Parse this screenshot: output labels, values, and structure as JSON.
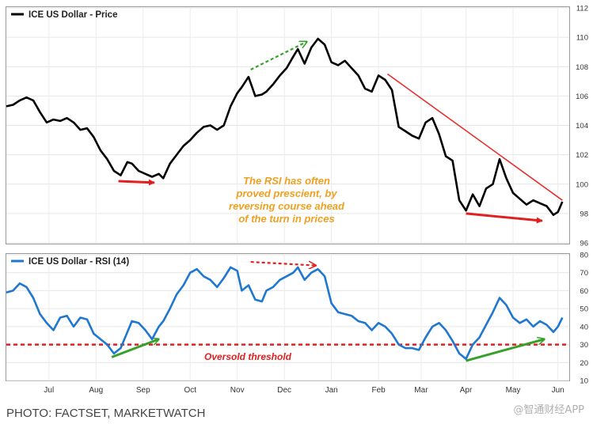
{
  "chart_data": [
    {
      "type": "line",
      "series": [
        {
          "name": "ICE US Dollar - Price",
          "color": "#000000",
          "points": [
            [
              0,
              105.3
            ],
            [
              0.3,
              105.4
            ],
            [
              0.6,
              105.7
            ],
            [
              0.9,
              105.9
            ],
            [
              1.2,
              105.7
            ],
            [
              1.5,
              104.9
            ],
            [
              1.8,
              104.2
            ],
            [
              2.1,
              104.4
            ],
            [
              2.4,
              104.3
            ],
            [
              2.7,
              104.5
            ],
            [
              3.0,
              104.2
            ],
            [
              3.3,
              103.7
            ],
            [
              3.6,
              103.8
            ],
            [
              3.9,
              103.2
            ],
            [
              4.2,
              102.3
            ],
            [
              4.5,
              101.7
            ],
            [
              4.8,
              100.9
            ],
            [
              5.1,
              100.6
            ],
            [
              5.4,
              101.5
            ],
            [
              5.6,
              101.4
            ],
            [
              5.9,
              100.9
            ],
            [
              6.2,
              100.7
            ],
            [
              6.5,
              100.5
            ],
            [
              6.8,
              100.7
            ],
            [
              7.0,
              100.4
            ],
            [
              7.3,
              101.4
            ],
            [
              7.6,
              102.0
            ],
            [
              7.9,
              102.6
            ],
            [
              8.2,
              103.0
            ],
            [
              8.5,
              103.5
            ],
            [
              8.8,
              103.9
            ],
            [
              9.1,
              104.0
            ],
            [
              9.4,
              103.7
            ],
            [
              9.7,
              104.0
            ],
            [
              10.0,
              105.3
            ],
            [
              10.3,
              106.2
            ],
            [
              10.5,
              106.6
            ],
            [
              10.8,
              107.3
            ],
            [
              11.1,
              106.0
            ],
            [
              11.4,
              106.1
            ],
            [
              11.6,
              106.3
            ],
            [
              11.9,
              106.8
            ],
            [
              12.2,
              107.4
            ],
            [
              12.5,
              107.9
            ],
            [
              12.8,
              108.7
            ],
            [
              13.0,
              109.2
            ],
            [
              13.3,
              108.2
            ],
            [
              13.6,
              109.3
            ],
            [
              13.9,
              109.9
            ],
            [
              14.2,
              109.5
            ],
            [
              14.5,
              108.3
            ],
            [
              14.8,
              108.1
            ],
            [
              15.1,
              108.4
            ],
            [
              15.4,
              107.9
            ],
            [
              15.7,
              107.4
            ],
            [
              16.0,
              106.5
            ],
            [
              16.3,
              106.3
            ],
            [
              16.6,
              107.4
            ],
            [
              16.9,
              107.1
            ],
            [
              17.2,
              106.4
            ],
            [
              17.5,
              103.9
            ],
            [
              17.8,
              103.6
            ],
            [
              18.1,
              103.3
            ],
            [
              18.4,
              103.1
            ],
            [
              18.7,
              104.2
            ],
            [
              19.0,
              104.5
            ],
            [
              19.3,
              103.4
            ],
            [
              19.6,
              101.9
            ],
            [
              19.9,
              101.6
            ],
            [
              20.2,
              98.9
            ],
            [
              20.5,
              98.2
            ],
            [
              20.8,
              99.3
            ],
            [
              21.1,
              98.5
            ],
            [
              21.4,
              99.7
            ],
            [
              21.7,
              100.0
            ],
            [
              22.0,
              101.7
            ],
            [
              22.3,
              100.4
            ],
            [
              22.6,
              99.4
            ],
            [
              22.9,
              99.0
            ],
            [
              23.2,
              98.6
            ],
            [
              23.5,
              98.9
            ],
            [
              23.8,
              98.7
            ],
            [
              24.1,
              98.5
            ],
            [
              24.4,
              97.9
            ],
            [
              24.6,
              98.1
            ],
            [
              24.8,
              98.8
            ]
          ]
        }
      ],
      "x_domain": [
        0,
        25
      ],
      "xlabels": [
        {
          "label": "Jul",
          "x": 1.9
        },
        {
          "label": "Aug",
          "x": 4.0
        },
        {
          "label": "Sep",
          "x": 6.1
        },
        {
          "label": "Oct",
          "x": 8.2
        },
        {
          "label": "Nov",
          "x": 10.3
        },
        {
          "label": "Dec",
          "x": 12.4
        },
        {
          "label": "Jan",
          "x": 14.5
        },
        {
          "label": "Feb",
          "x": 16.6
        },
        {
          "label": "Mar",
          "x": 18.5
        },
        {
          "label": "Apr",
          "x": 20.5
        },
        {
          "label": "May",
          "x": 22.6
        },
        {
          "label": "Jun",
          "x": 24.6
        }
      ],
      "ylim": [
        96,
        112
      ],
      "yticks": [
        96,
        98,
        100,
        102,
        104,
        106,
        108,
        110,
        112
      ],
      "legend_position": "top-left",
      "grid": true,
      "annotations": {
        "text_lines": [
          "The RSI has often",
          "proved prescient, by",
          "reversing course ahead",
          "of the turn in prices"
        ],
        "text_color": "#f0a020",
        "red_arrow_1": {
          "from": [
            5.0,
            100.2
          ],
          "to": [
            6.6,
            100.1
          ]
        },
        "red_arrow_2": {
          "from": [
            20.5,
            98.0
          ],
          "to": [
            23.9,
            97.5
          ]
        },
        "green_arrow": {
          "from": [
            10.9,
            107.8
          ],
          "to": [
            13.4,
            109.7
          ]
        },
        "trend_line": {
          "from": [
            17.0,
            107.5
          ],
          "to": [
            24.8,
            98.9
          ],
          "color": "#e53030"
        }
      }
    },
    {
      "type": "line",
      "series": [
        {
          "name": "ICE US Dollar - RSI (14)",
          "color": "#1f77d0",
          "points": [
            [
              0,
              59
            ],
            [
              0.3,
              60
            ],
            [
              0.6,
              64
            ],
            [
              0.9,
              62
            ],
            [
              1.2,
              56
            ],
            [
              1.5,
              47
            ],
            [
              1.8,
              42
            ],
            [
              2.1,
              38
            ],
            [
              2.4,
              45
            ],
            [
              2.7,
              46
            ],
            [
              3.0,
              40
            ],
            [
              3.3,
              45
            ],
            [
              3.6,
              44
            ],
            [
              3.9,
              36
            ],
            [
              4.2,
              33
            ],
            [
              4.5,
              30
            ],
            [
              4.8,
              25
            ],
            [
              5.1,
              28
            ],
            [
              5.4,
              37
            ],
            [
              5.6,
              43
            ],
            [
              5.9,
              42
            ],
            [
              6.2,
              38
            ],
            [
              6.5,
              33
            ],
            [
              6.8,
              40
            ],
            [
              7.0,
              43
            ],
            [
              7.3,
              50
            ],
            [
              7.6,
              58
            ],
            [
              7.9,
              63
            ],
            [
              8.2,
              70
            ],
            [
              8.5,
              72
            ],
            [
              8.8,
              68
            ],
            [
              9.1,
              66
            ],
            [
              9.4,
              62
            ],
            [
              9.7,
              67
            ],
            [
              10.0,
              73
            ],
            [
              10.3,
              71
            ],
            [
              10.5,
              60
            ],
            [
              10.8,
              63
            ],
            [
              11.1,
              55
            ],
            [
              11.4,
              54
            ],
            [
              11.6,
              60
            ],
            [
              11.9,
              62
            ],
            [
              12.2,
              66
            ],
            [
              12.5,
              68
            ],
            [
              12.8,
              70
            ],
            [
              13.0,
              73
            ],
            [
              13.3,
              66
            ],
            [
              13.6,
              70
            ],
            [
              13.9,
              72
            ],
            [
              14.2,
              68
            ],
            [
              14.5,
              53
            ],
            [
              14.8,
              48
            ],
            [
              15.1,
              47
            ],
            [
              15.4,
              46
            ],
            [
              15.7,
              43
            ],
            [
              16.0,
              42
            ],
            [
              16.3,
              38
            ],
            [
              16.6,
              42
            ],
            [
              16.9,
              40
            ],
            [
              17.2,
              36
            ],
            [
              17.5,
              30
            ],
            [
              17.8,
              28
            ],
            [
              18.1,
              28
            ],
            [
              18.4,
              27
            ],
            [
              18.7,
              34
            ],
            [
              19.0,
              40
            ],
            [
              19.3,
              42
            ],
            [
              19.6,
              38
            ],
            [
              19.9,
              32
            ],
            [
              20.2,
              25
            ],
            [
              20.5,
              22
            ],
            [
              20.8,
              30
            ],
            [
              21.1,
              34
            ],
            [
              21.4,
              41
            ],
            [
              21.7,
              48
            ],
            [
              22.0,
              56
            ],
            [
              22.3,
              52
            ],
            [
              22.6,
              45
            ],
            [
              22.9,
              42
            ],
            [
              23.2,
              44
            ],
            [
              23.5,
              40
            ],
            [
              23.8,
              43
            ],
            [
              24.1,
              41
            ],
            [
              24.4,
              37
            ],
            [
              24.6,
              40
            ],
            [
              24.8,
              45
            ]
          ]
        }
      ],
      "x_domain": [
        0,
        25
      ],
      "xlabels": [
        {
          "label": "Jul",
          "x": 1.9
        },
        {
          "label": "Aug",
          "x": 4.0
        },
        {
          "label": "Sep",
          "x": 6.1
        },
        {
          "label": "Oct",
          "x": 8.2
        },
        {
          "label": "Nov",
          "x": 10.3
        },
        {
          "label": "Dec",
          "x": 12.4
        },
        {
          "label": "Jan",
          "x": 14.5
        },
        {
          "label": "Feb",
          "x": 16.6
        },
        {
          "label": "Mar",
          "x": 18.5
        },
        {
          "label": "Apr",
          "x": 20.5
        },
        {
          "label": "May",
          "x": 22.6
        },
        {
          "label": "Jun",
          "x": 24.6
        }
      ],
      "ylim": [
        10,
        80
      ],
      "yticks": [
        10,
        20,
        30,
        40,
        50,
        60,
        70,
        80
      ],
      "legend_position": "top-left",
      "grid": true,
      "threshold": {
        "value": 30,
        "label": "Oversold threshold",
        "color": "#e02020"
      },
      "annotations": {
        "green_arrow_1": {
          "from": [
            4.7,
            23
          ],
          "to": [
            6.8,
            33
          ]
        },
        "green_arrow_2": {
          "from": [
            20.5,
            21
          ],
          "to": [
            24.0,
            33
          ]
        },
        "red_arrow": {
          "from": [
            10.9,
            76
          ],
          "to": [
            13.8,
            74
          ]
        }
      }
    }
  ],
  "credit": "PHOTO: FACTSET, MARKETWATCH",
  "watermark": "@智通财经APP"
}
